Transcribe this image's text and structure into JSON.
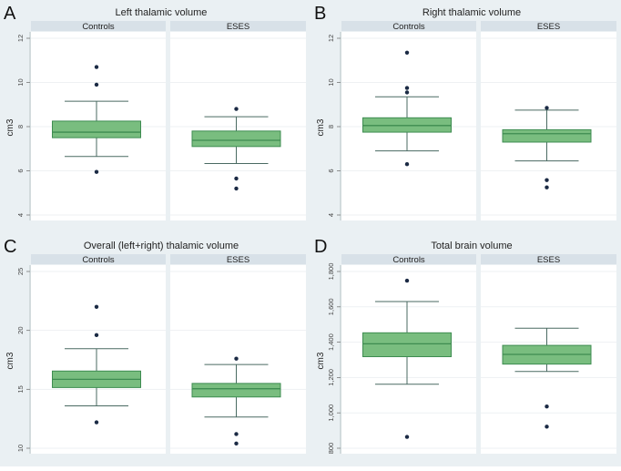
{
  "colors": {
    "box_fill": "#79bd7f",
    "box_edge": "#3e8c51",
    "whisker": "#4a6a62",
    "outlier": "#1b2a44",
    "strip": "#d8e1e8",
    "outer": "#eaf0f3"
  },
  "chart_data": [
    {
      "panel_letter": "A",
      "type": "box",
      "title": "Left thalamic volume",
      "ylabel": "cm3",
      "ylim": [
        4,
        12
      ],
      "yticks": [
        4,
        6,
        8,
        10,
        12
      ],
      "ytick_labels": [
        "4",
        "6",
        "8",
        "10",
        "12"
      ],
      "categories": [
        "Controls",
        "ESES"
      ],
      "boxes": [
        {
          "q1": 7.5,
          "median": 7.75,
          "q3": 8.25,
          "whisker_low": 6.65,
          "whisker_high": 9.15,
          "outliers": [
            10.7,
            9.9,
            5.95
          ]
        },
        {
          "q1": 7.1,
          "median": 7.38,
          "q3": 7.8,
          "whisker_low": 6.33,
          "whisker_high": 8.45,
          "outliers": [
            8.8,
            5.65,
            5.2
          ]
        }
      ]
    },
    {
      "panel_letter": "B",
      "type": "box",
      "title": "Right thalamic volume",
      "ylabel": "cm3",
      "ylim": [
        4,
        12
      ],
      "yticks": [
        4,
        6,
        8,
        10,
        12
      ],
      "ytick_labels": [
        "4",
        "6",
        "8",
        "10",
        "12"
      ],
      "categories": [
        "Controls",
        "ESES"
      ],
      "boxes": [
        {
          "q1": 7.75,
          "median": 8.05,
          "q3": 8.4,
          "whisker_low": 6.9,
          "whisker_high": 9.35,
          "outliers": [
            11.35,
            9.75,
            9.55,
            6.3
          ]
        },
        {
          "q1": 7.3,
          "median": 7.68,
          "q3": 7.86,
          "whisker_low": 6.45,
          "whisker_high": 8.75,
          "outliers": [
            8.85,
            5.58,
            5.25
          ]
        }
      ]
    },
    {
      "panel_letter": "C",
      "type": "box",
      "title": "Overall (left+right) thalamic volume",
      "ylabel": "cm3",
      "ylim": [
        10,
        25
      ],
      "yticks": [
        10,
        15,
        20,
        25
      ],
      "ytick_labels": [
        "10",
        "15",
        "20",
        "25"
      ],
      "categories": [
        "Controls",
        "ESES"
      ],
      "boxes": [
        {
          "q1": 15.15,
          "median": 15.85,
          "q3": 16.55,
          "whisker_low": 13.6,
          "whisker_high": 18.45,
          "outliers": [
            22.0,
            19.6,
            12.2
          ]
        },
        {
          "q1": 14.35,
          "median": 15.05,
          "q3": 15.5,
          "whisker_low": 12.65,
          "whisker_high": 17.1,
          "outliers": [
            17.6,
            11.2,
            10.4
          ]
        }
      ]
    },
    {
      "panel_letter": "D",
      "type": "box",
      "title": "Total brain volume",
      "ylabel": "cm3",
      "ylim": [
        800,
        1800
      ],
      "yticks": [
        800,
        1000,
        1200,
        1400,
        1600,
        1800
      ],
      "ytick_labels": [
        "800",
        "1,000",
        "1,200",
        "1,400",
        "1,600",
        "1,800"
      ],
      "categories": [
        "Controls",
        "ESES"
      ],
      "boxes": [
        {
          "q1": 1318,
          "median": 1391,
          "q3": 1453,
          "whisker_low": 1162,
          "whisker_high": 1630,
          "outliers": [
            1748,
            864
          ]
        },
        {
          "q1": 1276,
          "median": 1331,
          "q3": 1382,
          "whisker_low": 1234,
          "whisker_high": 1479,
          "outliers": [
            1036,
            922
          ]
        }
      ]
    }
  ]
}
